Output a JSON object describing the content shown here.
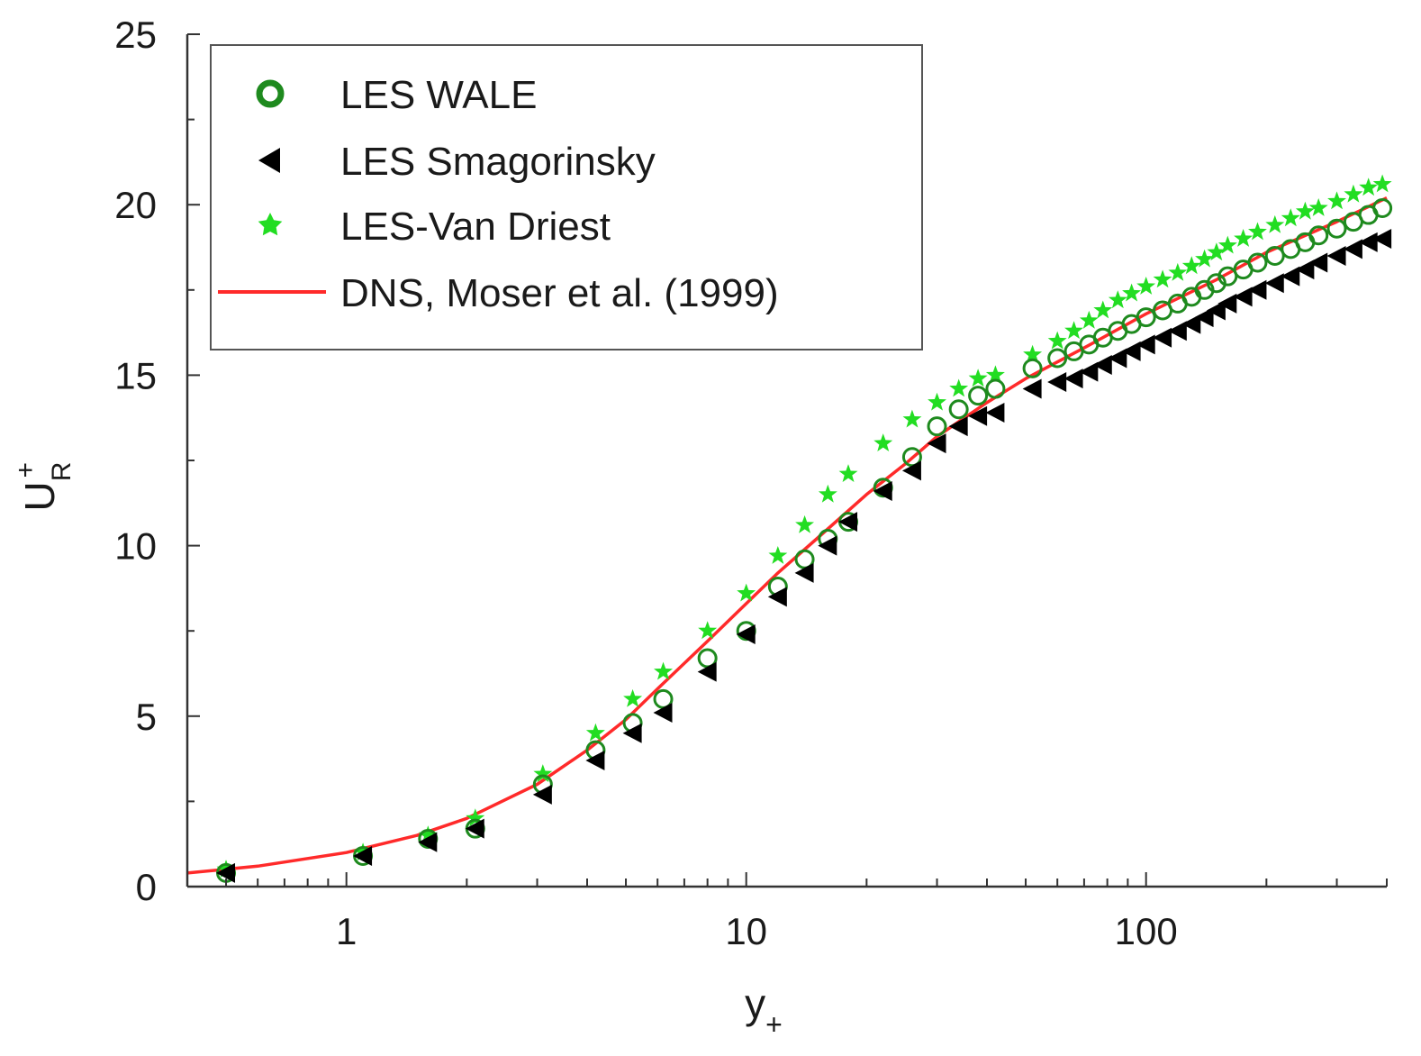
{
  "chart_data": {
    "type": "scatter",
    "xscale": "log",
    "xlim": [
      0.4,
      400
    ],
    "ylim": [
      0,
      25
    ],
    "xlabel": {
      "main": "y",
      "sub": "+"
    },
    "ylabel": {
      "main": "U",
      "sub": "R",
      "sup": "+"
    },
    "xticks": [
      {
        "value": 1,
        "label": "1"
      },
      {
        "value": 10,
        "label": "10"
      },
      {
        "value": 100,
        "label": "100"
      }
    ],
    "yticks": [
      {
        "value": 0,
        "label": "0"
      },
      {
        "value": 5,
        "label": "5"
      },
      {
        "value": 10,
        "label": "10"
      },
      {
        "value": 15,
        "label": "15"
      },
      {
        "value": 20,
        "label": "20"
      },
      {
        "value": 25,
        "label": "25"
      }
    ],
    "legend": {
      "position": "top-left"
    },
    "series": [
      {
        "name": "LES WALE",
        "marker": "open-circle",
        "color": "#1e8a1e",
        "x": [
          0.5,
          1.1,
          1.6,
          2.1,
          3.1,
          4.2,
          5.2,
          6.2,
          8.0,
          10.0,
          12.0,
          14.0,
          16.0,
          18.0,
          22.0,
          26.0,
          30.0,
          34.0,
          38.0,
          42.0,
          52.0,
          60.0,
          66.0,
          72.0,
          78.0,
          85.0,
          92.0,
          100.0,
          110.0,
          120.0,
          130.0,
          140.0,
          150.0,
          160.0,
          175.0,
          190.0,
          210.0,
          230.0,
          250.0,
          270.0,
          300.0,
          330.0,
          360.0,
          390.0
        ],
        "y": [
          0.4,
          0.9,
          1.4,
          1.7,
          3.0,
          4.0,
          4.8,
          5.5,
          6.7,
          7.5,
          8.8,
          9.6,
          10.2,
          10.7,
          11.7,
          12.6,
          13.5,
          14.0,
          14.4,
          14.6,
          15.2,
          15.5,
          15.7,
          15.9,
          16.1,
          16.3,
          16.5,
          16.7,
          16.9,
          17.1,
          17.3,
          17.5,
          17.7,
          17.9,
          18.1,
          18.3,
          18.5,
          18.7,
          18.9,
          19.1,
          19.3,
          19.5,
          19.7,
          19.9
        ]
      },
      {
        "name": "LES Smagorinsky",
        "marker": "triangle-left",
        "color": "#000000",
        "x": [
          0.5,
          1.1,
          1.6,
          2.1,
          3.1,
          4.2,
          5.2,
          6.2,
          8.0,
          10.0,
          12.0,
          14.0,
          16.0,
          18.0,
          22.0,
          26.0,
          30.0,
          34.0,
          38.0,
          42.0,
          52.0,
          60.0,
          66.0,
          72.0,
          78.0,
          85.0,
          92.0,
          100.0,
          110.0,
          120.0,
          130.0,
          140.0,
          150.0,
          160.0,
          175.0,
          190.0,
          210.0,
          230.0,
          250.0,
          270.0,
          300.0,
          330.0,
          360.0,
          390.0
        ],
        "y": [
          0.4,
          0.9,
          1.3,
          1.7,
          2.7,
          3.7,
          4.5,
          5.1,
          6.3,
          7.4,
          8.5,
          9.2,
          10.0,
          10.7,
          11.6,
          12.2,
          13.0,
          13.5,
          13.8,
          13.9,
          14.6,
          14.8,
          14.9,
          15.1,
          15.3,
          15.5,
          15.7,
          15.9,
          16.1,
          16.3,
          16.5,
          16.7,
          16.9,
          17.1,
          17.3,
          17.5,
          17.7,
          17.9,
          18.1,
          18.3,
          18.5,
          18.7,
          18.9,
          19.0
        ]
      },
      {
        "name": "LES-Van Driest",
        "marker": "star",
        "color": "#22dd22",
        "x": [
          0.5,
          1.1,
          1.6,
          2.1,
          3.1,
          4.2,
          5.2,
          6.2,
          8.0,
          10.0,
          12.0,
          14.0,
          16.0,
          18.0,
          22.0,
          26.0,
          30.0,
          34.0,
          38.0,
          42.0,
          52.0,
          60.0,
          66.0,
          72.0,
          78.0,
          85.0,
          92.0,
          100.0,
          110.0,
          120.0,
          130.0,
          140.0,
          150.0,
          160.0,
          175.0,
          190.0,
          210.0,
          230.0,
          250.0,
          270.0,
          300.0,
          330.0,
          360.0,
          390.0
        ],
        "y": [
          0.5,
          1.0,
          1.5,
          2.0,
          3.3,
          4.5,
          5.5,
          6.3,
          7.5,
          8.6,
          9.7,
          10.6,
          11.5,
          12.1,
          13.0,
          13.7,
          14.2,
          14.6,
          14.9,
          15.0,
          15.6,
          16.0,
          16.3,
          16.6,
          16.9,
          17.2,
          17.4,
          17.6,
          17.8,
          18.0,
          18.2,
          18.4,
          18.6,
          18.8,
          19.0,
          19.2,
          19.4,
          19.6,
          19.8,
          19.9,
          20.1,
          20.3,
          20.5,
          20.6
        ]
      },
      {
        "name": "DNS, Moser et al. (1999)",
        "marker": "line",
        "color": "#ff2a2a",
        "x": [
          0.4,
          0.6,
          1.0,
          1.5,
          2.0,
          3.0,
          4.0,
          5.0,
          6.0,
          8.0,
          10.0,
          12.0,
          15.0,
          20.0,
          25.0,
          30.0,
          40.0,
          50.0,
          70.0,
          100.0,
          150.0,
          200.0,
          300.0,
          400.0
        ],
        "y": [
          0.4,
          0.6,
          1.0,
          1.5,
          2.0,
          3.0,
          4.0,
          4.9,
          5.8,
          7.2,
          8.3,
          9.2,
          10.2,
          11.5,
          12.4,
          13.2,
          14.2,
          14.9,
          15.8,
          16.8,
          17.8,
          18.6,
          19.5,
          20.2
        ]
      }
    ]
  }
}
